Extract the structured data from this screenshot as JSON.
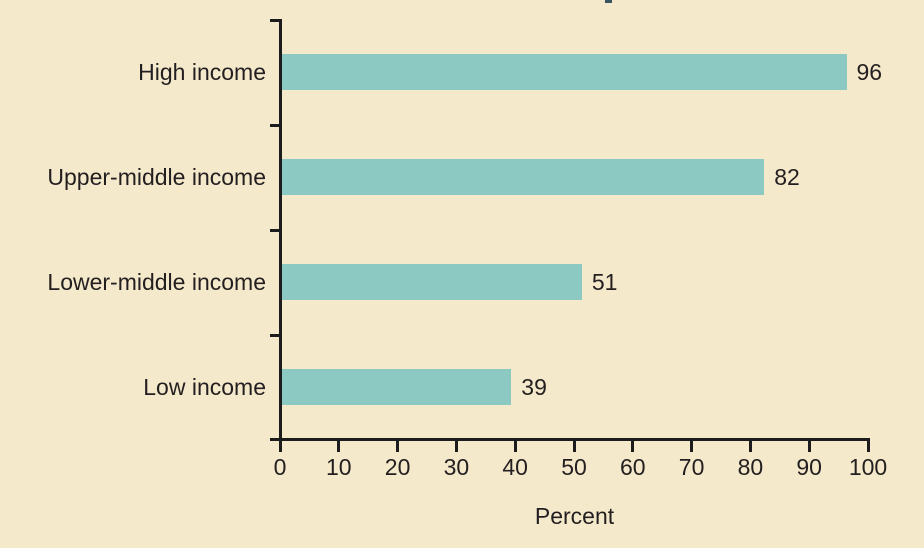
{
  "chart_data": {
    "type": "bar",
    "orientation": "horizontal",
    "categories": [
      "High income",
      "Upper-middle income",
      "Lower-middle income",
      "Low income"
    ],
    "values": [
      96,
      82,
      51,
      39
    ],
    "value_labels": [
      "96",
      "82",
      "51",
      "39"
    ],
    "xlabel": "Percent",
    "xlim": [
      0,
      100
    ],
    "x_ticks": [
      0,
      10,
      20,
      30,
      40,
      50,
      60,
      70,
      80,
      90,
      100
    ],
    "grid": "off",
    "legend": "none",
    "colors": {
      "background": "#F5E9CB",
      "bar": "#8CC9C2",
      "text": "#231F20",
      "axis": "#1C1C1C",
      "top_artifact": "#37555C"
    }
  }
}
